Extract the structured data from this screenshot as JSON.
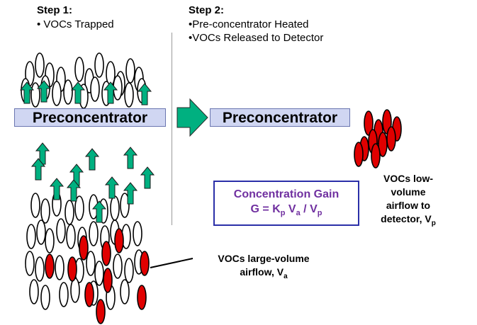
{
  "step1": {
    "title": "Step 1:",
    "items": [
      "• VOCs Trapped"
    ]
  },
  "step2": {
    "title": "Step 2:",
    "items": [
      "•Pre-concentrator Heated",
      "•VOCs Released to Detector"
    ]
  },
  "preconcentrator_left": "Preconcentrator",
  "preconcentrator_right": "Preconcentrator",
  "gain": {
    "title": "Concentration Gain",
    "formula_prefix": "G = K",
    "sub_p1": "p",
    "mid": " V",
    "sub_a": "a",
    "div": " / V",
    "sub_p2": "p"
  },
  "label_large": {
    "line1": "VOCs  large-volume",
    "line2": "airflow, V",
    "sub": "a"
  },
  "label_low": {
    "line1": "VOCs low-",
    "line2": "volume",
    "line3": "airflow to",
    "line4": "detector, V",
    "sub": "p"
  },
  "colors": {
    "voc_red": "#e00000",
    "air_white": "#ffffff",
    "arrow_green": "#00b080",
    "box_fill": "#d0d6f2",
    "gain_text": "#7030a0",
    "gain_border": "#2b2fa8"
  },
  "icons": [
    "up-arrow-icon",
    "right-arrow-icon",
    "molecule-oval-icon"
  ]
}
